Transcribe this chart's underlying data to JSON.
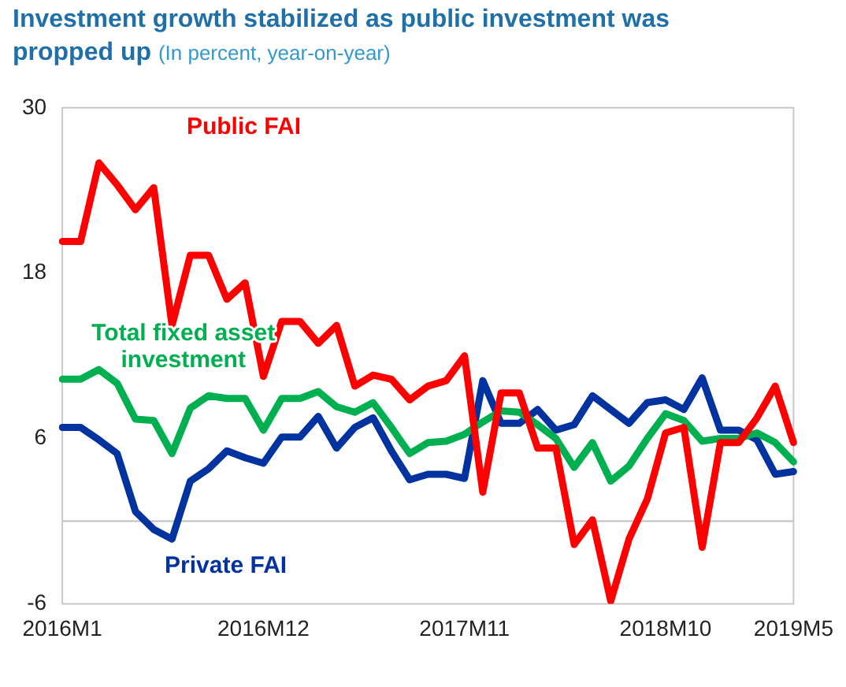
{
  "chart_data": {
    "type": "line",
    "title": "Investment growth stabilized as public investment was propped up",
    "subtitle": "(In percent, year-on-year)",
    "categories": [
      "2016M1",
      null,
      null,
      null,
      null,
      null,
      null,
      null,
      null,
      null,
      null,
      "2016M12",
      null,
      null,
      null,
      null,
      null,
      null,
      null,
      null,
      null,
      null,
      "2017M11",
      null,
      null,
      null,
      null,
      null,
      null,
      null,
      null,
      null,
      null,
      "2018M10",
      null,
      null,
      null,
      null,
      null,
      null,
      "2019M5"
    ],
    "series": [
      {
        "name": "Public FAI",
        "color": "#ff0000",
        "values": [
          20.3,
          20.3,
          26.0,
          24.4,
          22.6,
          24.2,
          14.2,
          19.3,
          19.3,
          16.1,
          17.3,
          10.5,
          14.5,
          14.5,
          12.9,
          14.2,
          9.8,
          10.6,
          10.3,
          8.8,
          9.8,
          10.2,
          12.0,
          2.1,
          9.3,
          9.3,
          5.3,
          5.3,
          -1.7,
          0.1,
          -5.8,
          -1.3,
          1.6,
          6.4,
          6.8,
          -1.9,
          5.7,
          5.7,
          7.5,
          9.8,
          5.7
        ]
      },
      {
        "name": "Total fixed asset investment",
        "color": "#00b050",
        "values": [
          10.3,
          10.3,
          11.0,
          10.0,
          7.4,
          7.3,
          4.9,
          8.2,
          9.1,
          8.9,
          8.9,
          6.6,
          8.9,
          8.9,
          9.4,
          8.3,
          7.9,
          8.6,
          6.8,
          4.9,
          5.7,
          5.8,
          6.3,
          7.2,
          8.0,
          7.9,
          7.0,
          6.0,
          3.9,
          5.7,
          2.9,
          4.0,
          6.0,
          7.8,
          7.3,
          5.8,
          6.0,
          6.0,
          6.4,
          5.7,
          4.3
        ]
      },
      {
        "name": "Private FAI",
        "color": "#0033a0",
        "values": [
          6.8,
          6.8,
          5.9,
          4.9,
          0.7,
          -0.6,
          -1.3,
          2.9,
          3.8,
          5.1,
          4.6,
          4.2,
          6.1,
          6.1,
          7.6,
          5.3,
          6.8,
          7.5,
          5.1,
          3.0,
          3.4,
          3.4,
          3.1,
          10.2,
          7.1,
          7.1,
          8.1,
          6.6,
          7.0,
          9.1,
          8.1,
          7.1,
          8.6,
          8.8,
          8.1,
          10.4,
          6.6,
          6.6,
          5.9,
          3.4,
          3.6
        ]
      }
    ],
    "ylim": [
      -6,
      30
    ],
    "yticks": [
      -6,
      6,
      18,
      30
    ],
    "grid": false,
    "legend": false,
    "marker": "none",
    "line_style": "solid",
    "ref_lines": [
      {
        "axis": "y",
        "value": 0,
        "color": "#bfbfbf"
      }
    ]
  }
}
